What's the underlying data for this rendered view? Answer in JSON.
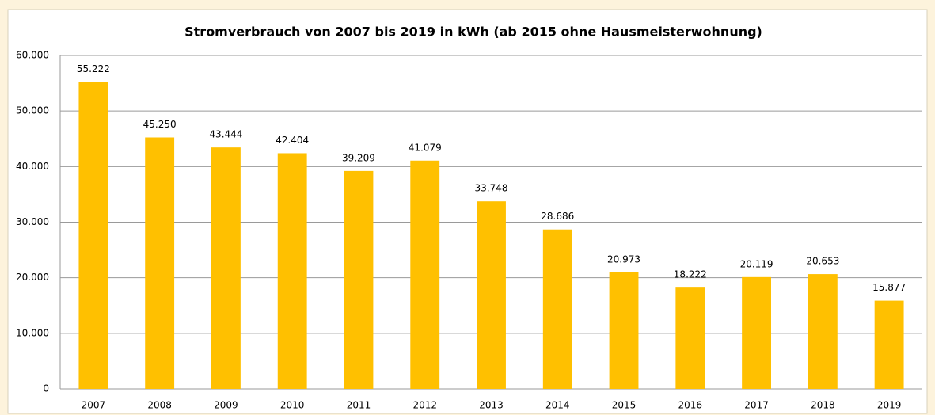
{
  "chart_data": {
    "type": "bar",
    "title": "Stromverbrauch von 2007 bis 2019 in kWh (ab 2015 ohne Hausmeisterwohnung)",
    "categories": [
      "2007",
      "2008",
      "2009",
      "2010",
      "2011",
      "2012",
      "2013",
      "2014",
      "2015",
      "2016",
      "2017",
      "2018",
      "2019"
    ],
    "values": [
      55222,
      45250,
      43444,
      42404,
      39209,
      41079,
      33748,
      28686,
      20973,
      18222,
      20119,
      20653,
      15877
    ],
    "value_labels": [
      "55.222",
      "45.250",
      "43.444",
      "42.404",
      "39.209",
      "41.079",
      "33.748",
      "28.686",
      "20.973",
      "18.222",
      "20.119",
      "20.653",
      "15.877"
    ],
    "color": "#ffc000",
    "ylim": [
      0,
      60000
    ],
    "yticks": [
      0,
      {
        "value": 10000,
        "label": "10.000"
      },
      {
        "value": 20000,
        "label": "20.000"
      },
      {
        "value": 30000,
        "label": "30.000"
      },
      {
        "value": 40000,
        "label": "40.000"
      },
      {
        "value": 50000,
        "label": "50.000"
      },
      {
        "value": 60000,
        "label": "60.000"
      }
    ],
    "grid": true
  }
}
